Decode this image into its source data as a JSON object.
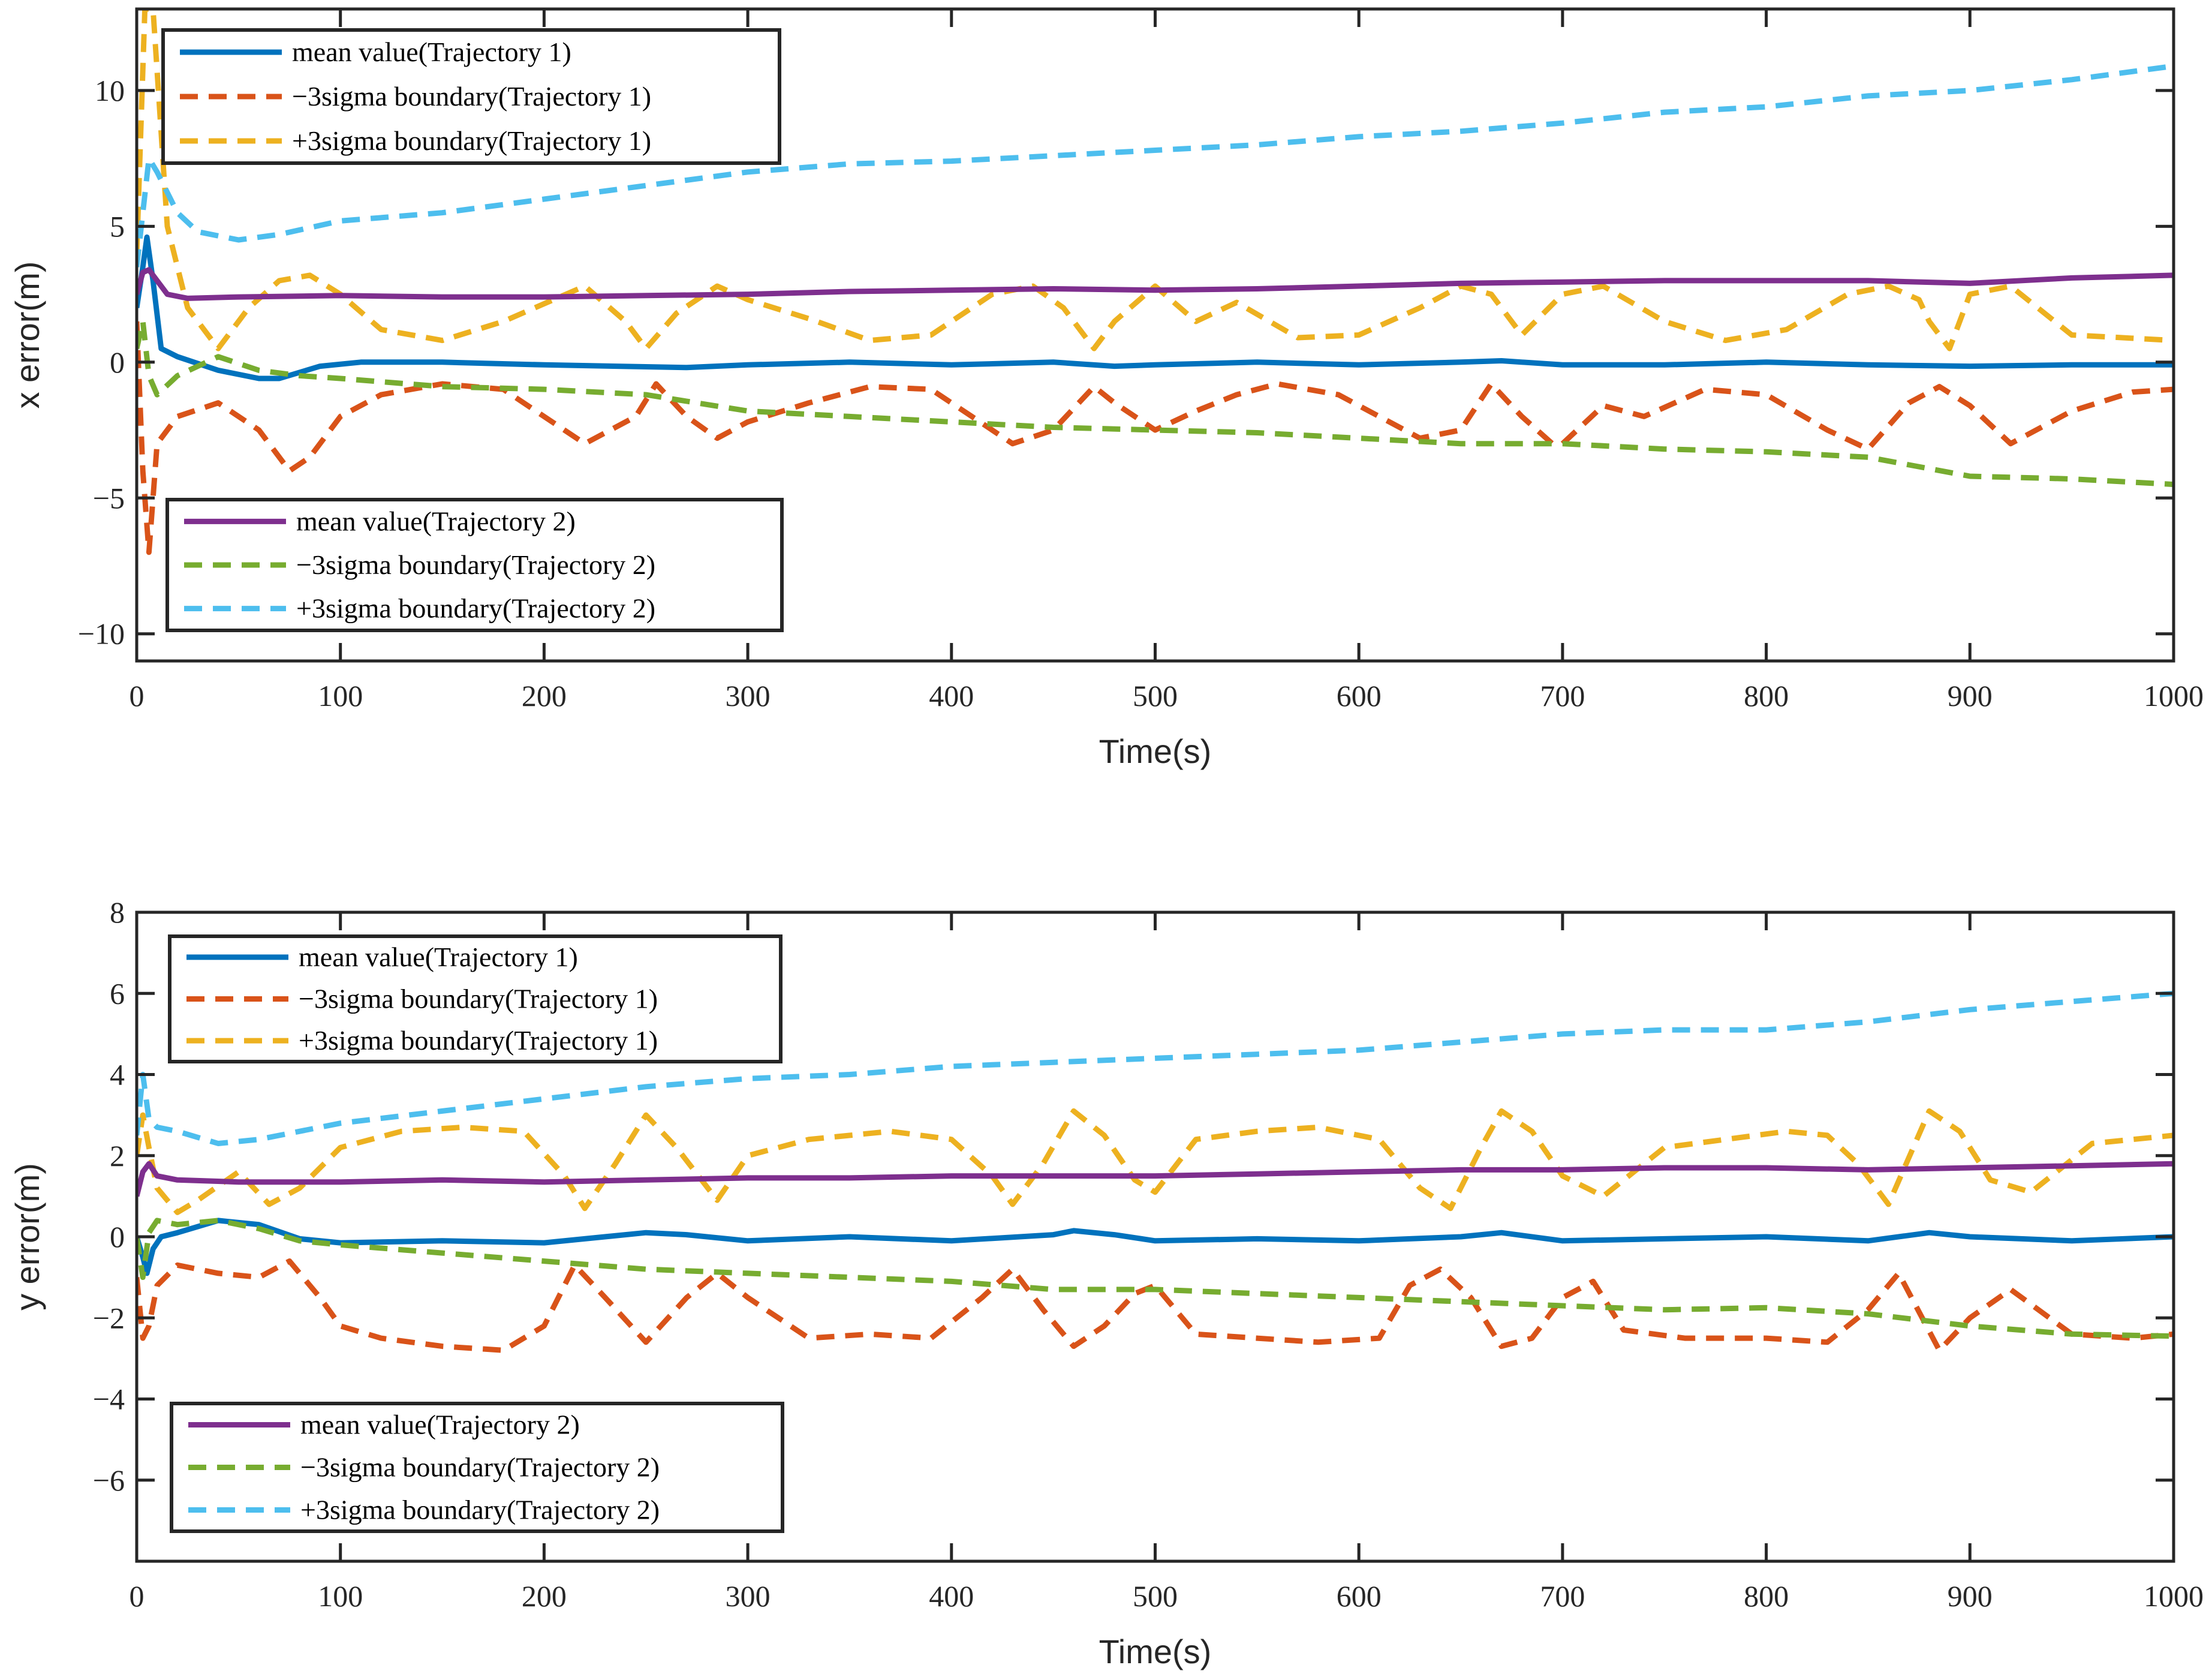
{
  "chart_data": [
    {
      "type": "line",
      "xlabel": "Time(s)",
      "ylabel": "x error(m)",
      "xlim": [
        0,
        1000
      ],
      "ylim": [
        -11,
        13
      ],
      "xticks": [
        0,
        100,
        200,
        300,
        400,
        500,
        600,
        700,
        800,
        900,
        1000
      ],
      "yticks": [
        -10,
        -5,
        0,
        5,
        10
      ],
      "ytick_labels": [
        "−10",
        "−5",
        "0",
        "5",
        "10"
      ],
      "legends": [
        {
          "position": "top-left",
          "entries": [
            "mean value(Trajectory 1)",
            "−3sigma boundary(Trajectory 1)",
            "+3sigma boundary(Trajectory 1)"
          ]
        },
        {
          "position": "bottom-left",
          "entries": [
            "mean value(Trajectory 2)",
            "−3sigma boundary(Trajectory 2)",
            "+3sigma boundary(Trajectory 2)"
          ]
        }
      ],
      "series": [
        {
          "name": "mean value(Trajectory 1)",
          "color": "#0072BD",
          "dashed": false,
          "x": [
            0,
            3,
            5,
            8,
            12,
            20,
            40,
            60,
            70,
            90,
            110,
            150,
            200,
            270,
            300,
            350,
            400,
            450,
            480,
            500,
            550,
            600,
            650,
            670,
            700,
            750,
            800,
            850,
            900,
            950,
            1000
          ],
          "y": [
            2,
            3.5,
            4.6,
            3.0,
            0.5,
            0.2,
            -0.3,
            -0.6,
            -0.6,
            -0.15,
            0,
            0,
            -0.1,
            -0.2,
            -0.1,
            0,
            -0.1,
            0,
            -0.15,
            -0.1,
            0,
            -0.1,
            0,
            0.05,
            -0.1,
            -0.1,
            0,
            -0.1,
            -0.15,
            -0.1,
            -0.1
          ]
        },
        {
          "name": "−3sigma boundary(Trajectory 1)",
          "color": "#D95319",
          "dashed": true,
          "x": [
            0,
            3,
            6,
            10,
            20,
            40,
            60,
            75,
            85,
            100,
            120,
            150,
            180,
            220,
            245,
            255,
            270,
            285,
            300,
            330,
            360,
            390,
            410,
            430,
            450,
            470,
            480,
            500,
            520,
            540,
            560,
            590,
            610,
            630,
            650,
            665,
            680,
            695,
            700,
            720,
            740,
            770,
            800,
            830,
            850,
            870,
            885,
            900,
            920,
            950,
            980,
            1000
          ],
          "y": [
            1.5,
            -4,
            -7,
            -3,
            -2,
            -1.5,
            -2.5,
            -4,
            -3.5,
            -2,
            -1.2,
            -0.8,
            -1,
            -3,
            -2,
            -0.8,
            -2,
            -2.8,
            -2.2,
            -1.5,
            -0.9,
            -1,
            -2,
            -3,
            -2.5,
            -0.9,
            -1.5,
            -2.5,
            -1.8,
            -1.2,
            -0.8,
            -1.2,
            -2,
            -2.8,
            -2.5,
            -0.8,
            -2,
            -3,
            -3,
            -1.6,
            -2,
            -1,
            -1.2,
            -2.5,
            -3.2,
            -1.5,
            -0.9,
            -1.6,
            -3,
            -1.8,
            -1.1,
            -1.0
          ]
        },
        {
          "name": "+3sigma boundary(Trajectory 1)",
          "color": "#EDB120",
          "dashed": true,
          "x": [
            0,
            4,
            8,
            15,
            25,
            40,
            55,
            70,
            85,
            100,
            120,
            150,
            180,
            220,
            240,
            250,
            265,
            285,
            300,
            330,
            360,
            390,
            420,
            440,
            455,
            470,
            480,
            500,
            520,
            540,
            570,
            600,
            630,
            650,
            665,
            680,
            700,
            720,
            750,
            780,
            810,
            840,
            860,
            875,
            880,
            890,
            900,
            920,
            950,
            1000
          ],
          "y": [
            4,
            13,
            13,
            5,
            2,
            0.5,
            2,
            3,
            3.2,
            2.5,
            1.2,
            0.8,
            1.5,
            2.8,
            1.5,
            0.5,
            1.8,
            2.8,
            2.3,
            1.6,
            0.8,
            1,
            2.5,
            2.8,
            2,
            0.5,
            1.5,
            2.8,
            1.5,
            2.2,
            0.9,
            1,
            2,
            2.8,
            2.5,
            1,
            2.5,
            2.8,
            1.5,
            0.8,
            1.2,
            2.5,
            2.8,
            2.3,
            1.5,
            0.5,
            2.5,
            2.8,
            1,
            0.8
          ]
        },
        {
          "name": "mean value(Trajectory 2)",
          "color": "#7E2F8E",
          "dashed": false,
          "x": [
            0,
            3,
            6,
            10,
            15,
            25,
            50,
            100,
            150,
            200,
            250,
            300,
            350,
            400,
            450,
            500,
            550,
            600,
            650,
            700,
            750,
            800,
            850,
            900,
            950,
            1000
          ],
          "y": [
            2.5,
            3.3,
            3.4,
            3.0,
            2.5,
            2.35,
            2.4,
            2.45,
            2.4,
            2.4,
            2.45,
            2.5,
            2.6,
            2.65,
            2.7,
            2.65,
            2.7,
            2.8,
            2.9,
            2.95,
            3.0,
            3.0,
            3.0,
            2.9,
            3.1,
            3.2
          ]
        },
        {
          "name": "−3sigma boundary(Trajectory 2)",
          "color": "#77AC30",
          "dashed": true,
          "x": [
            0,
            3,
            6,
            10,
            20,
            40,
            60,
            80,
            100,
            150,
            200,
            250,
            300,
            350,
            400,
            450,
            500,
            550,
            600,
            650,
            700,
            750,
            800,
            850,
            900,
            950,
            1000
          ],
          "y": [
            0.5,
            1.5,
            -0.5,
            -1.2,
            -0.5,
            0.2,
            -0.3,
            -0.5,
            -0.6,
            -0.9,
            -1.0,
            -1.2,
            -1.8,
            -2.0,
            -2.2,
            -2.4,
            -2.5,
            -2.6,
            -2.8,
            -3.0,
            -3.0,
            -3.2,
            -3.3,
            -3.5,
            -4.2,
            -4.3,
            -4.5
          ]
        },
        {
          "name": "+3sigma boundary(Trajectory 2)",
          "color": "#4DBEEE",
          "dashed": true,
          "x": [
            0,
            3,
            6,
            10,
            20,
            30,
            50,
            70,
            100,
            150,
            200,
            250,
            300,
            350,
            400,
            450,
            500,
            550,
            600,
            650,
            700,
            750,
            800,
            850,
            900,
            950,
            1000
          ],
          "y": [
            3.5,
            5.5,
            7.5,
            7,
            5.5,
            4.8,
            4.5,
            4.7,
            5.2,
            5.5,
            6.0,
            6.5,
            7.0,
            7.3,
            7.4,
            7.6,
            7.8,
            8.0,
            8.3,
            8.5,
            8.8,
            9.2,
            9.4,
            9.8,
            10.0,
            10.4,
            10.9
          ]
        }
      ]
    },
    {
      "type": "line",
      "xlabel": "Time(s)",
      "ylabel": "y error(m)",
      "xlim": [
        0,
        1000
      ],
      "ylim": [
        -8,
        8
      ],
      "xticks": [
        0,
        100,
        200,
        300,
        400,
        500,
        600,
        700,
        800,
        900,
        1000
      ],
      "yticks": [
        -6,
        -4,
        -2,
        0,
        2,
        4,
        6,
        8
      ],
      "ytick_labels": [
        "−6",
        "−4",
        "−2",
        "0",
        "2",
        "4",
        "6",
        "8"
      ],
      "legends": [
        {
          "position": "top-left",
          "entries": [
            "mean value(Trajectory 1)",
            "−3sigma boundary(Trajectory 1)",
            "+3sigma boundary(Trajectory 1)"
          ]
        },
        {
          "position": "bottom-left",
          "entries": [
            "mean value(Trajectory 2)",
            "−3sigma boundary(Trajectory 2)",
            "+3sigma boundary(Trajectory 2)"
          ]
        }
      ],
      "series": [
        {
          "name": "mean value(Trajectory 1)",
          "color": "#0072BD",
          "dashed": false,
          "x": [
            0,
            3,
            5,
            8,
            12,
            20,
            40,
            60,
            80,
            100,
            150,
            200,
            250,
            270,
            300,
            350,
            400,
            450,
            460,
            480,
            500,
            550,
            600,
            650,
            670,
            700,
            750,
            800,
            850,
            880,
            900,
            950,
            1000
          ],
          "y": [
            0,
            -0.5,
            -0.9,
            -0.3,
            0,
            0.1,
            0.4,
            0.3,
            -0.05,
            -0.15,
            -0.1,
            -0.15,
            0.1,
            0.05,
            -0.1,
            0,
            -0.1,
            0.05,
            0.15,
            0.05,
            -0.1,
            -0.05,
            -0.1,
            0,
            0.1,
            -0.1,
            -0.05,
            0,
            -0.1,
            0.1,
            0,
            -0.1,
            0
          ]
        },
        {
          "name": "−3sigma boundary(Trajectory 1)",
          "color": "#D95319",
          "dashed": true,
          "x": [
            0,
            3,
            6,
            10,
            20,
            40,
            60,
            75,
            90,
            100,
            120,
            150,
            180,
            200,
            215,
            230,
            250,
            270,
            285,
            300,
            330,
            360,
            390,
            415,
            430,
            445,
            460,
            475,
            490,
            500,
            520,
            550,
            580,
            610,
            625,
            640,
            655,
            670,
            685,
            700,
            715,
            730,
            760,
            800,
            830,
            850,
            865,
            885,
            900,
            920,
            950,
            980,
            1000
          ],
          "y": [
            -1,
            -2.5,
            -2.2,
            -1.2,
            -0.7,
            -0.9,
            -1.0,
            -0.6,
            -1.5,
            -2.2,
            -2.5,
            -2.7,
            -2.8,
            -2.2,
            -0.7,
            -1.5,
            -2.6,
            -1.5,
            -0.9,
            -1.5,
            -2.5,
            -2.4,
            -2.5,
            -1.5,
            -0.8,
            -1.8,
            -2.7,
            -2.2,
            -1.4,
            -1.2,
            -2.4,
            -2.5,
            -2.6,
            -2.5,
            -1.2,
            -0.8,
            -1.5,
            -2.7,
            -2.5,
            -1.5,
            -1.1,
            -2.3,
            -2.5,
            -2.5,
            -2.6,
            -1.8,
            -0.9,
            -2.8,
            -2.0,
            -1.3,
            -2.4,
            -2.5,
            -2.4
          ]
        },
        {
          "name": "+3sigma boundary(Trajectory 1)",
          "color": "#EDB120",
          "dashed": true,
          "x": [
            0,
            3,
            6,
            10,
            20,
            30,
            50,
            65,
            80,
            100,
            130,
            160,
            190,
            210,
            220,
            235,
            250,
            265,
            285,
            300,
            330,
            370,
            400,
            420,
            430,
            445,
            460,
            475,
            490,
            500,
            520,
            550,
            580,
            610,
            630,
            645,
            660,
            670,
            685,
            700,
            720,
            750,
            780,
            810,
            830,
            845,
            860,
            880,
            895,
            910,
            930,
            960,
            1000
          ],
          "y": [
            2,
            3,
            2.2,
            1.2,
            0.6,
            0.9,
            1.6,
            0.8,
            1.2,
            2.2,
            2.6,
            2.7,
            2.6,
            1.5,
            0.7,
            1.8,
            3.0,
            2.2,
            0.9,
            2.0,
            2.4,
            2.6,
            2.4,
            1.5,
            0.8,
            1.8,
            3.1,
            2.5,
            1.4,
            1.1,
            2.4,
            2.6,
            2.7,
            2.4,
            1.2,
            0.7,
            2.2,
            3.1,
            2.6,
            1.5,
            1.0,
            2.2,
            2.4,
            2.6,
            2.5,
            1.8,
            0.8,
            3.1,
            2.6,
            1.4,
            1.1,
            2.3,
            2.5
          ]
        },
        {
          "name": "mean value(Trajectory 2)",
          "color": "#7E2F8E",
          "dashed": false,
          "x": [
            0,
            3,
            6,
            10,
            20,
            50,
            100,
            150,
            200,
            250,
            300,
            350,
            400,
            450,
            500,
            550,
            600,
            650,
            700,
            750,
            800,
            850,
            900,
            950,
            1000
          ],
          "y": [
            1.0,
            1.6,
            1.8,
            1.5,
            1.4,
            1.35,
            1.35,
            1.4,
            1.35,
            1.4,
            1.45,
            1.45,
            1.5,
            1.5,
            1.5,
            1.55,
            1.6,
            1.65,
            1.65,
            1.7,
            1.7,
            1.65,
            1.7,
            1.75,
            1.8
          ]
        },
        {
          "name": "−3sigma boundary(Trajectory 2)",
          "color": "#77AC30",
          "dashed": true,
          "x": [
            0,
            3,
            6,
            10,
            20,
            40,
            60,
            80,
            100,
            150,
            200,
            250,
            300,
            350,
            400,
            450,
            500,
            550,
            600,
            650,
            700,
            750,
            800,
            850,
            900,
            950,
            1000
          ],
          "y": [
            0,
            -1.0,
            0.1,
            0.4,
            0.3,
            0.4,
            0.2,
            -0.1,
            -0.2,
            -0.4,
            -0.6,
            -0.8,
            -0.9,
            -1.0,
            -1.1,
            -1.3,
            -1.3,
            -1.4,
            -1.5,
            -1.6,
            -1.7,
            -1.8,
            -1.75,
            -1.9,
            -2.2,
            -2.4,
            -2.45
          ]
        },
        {
          "name": "+3sigma boundary(Trajectory 2)",
          "color": "#4DBEEE",
          "dashed": true,
          "x": [
            0,
            3,
            6,
            10,
            20,
            40,
            60,
            80,
            100,
            150,
            200,
            250,
            300,
            350,
            400,
            450,
            500,
            550,
            600,
            650,
            700,
            750,
            800,
            850,
            900,
            950,
            1000
          ],
          "y": [
            2.5,
            4.0,
            2.9,
            2.7,
            2.6,
            2.3,
            2.4,
            2.6,
            2.8,
            3.1,
            3.4,
            3.7,
            3.9,
            4.0,
            4.2,
            4.3,
            4.4,
            4.5,
            4.6,
            4.8,
            5.0,
            5.1,
            5.1,
            5.3,
            5.6,
            5.8,
            6.0
          ]
        }
      ]
    }
  ]
}
